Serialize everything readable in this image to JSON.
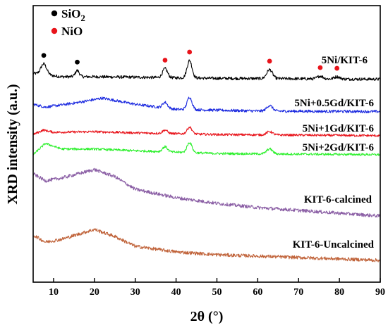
{
  "chart_data": {
    "type": "line",
    "xlabel": "2θ (°)",
    "ylabel": "XRD intensity (a.u.)",
    "xlim": [
      5,
      90
    ],
    "x_ticks": [
      10,
      20,
      30,
      40,
      50,
      60,
      70,
      80,
      90
    ],
    "y_ticks_shown": false,
    "legend": {
      "placement": "top-left",
      "entries": [
        {
          "name": "SiO2",
          "color": "#000000"
        },
        {
          "name": "NiO",
          "color": "#e8141b"
        }
      ]
    },
    "series": [
      {
        "name": "5Ni/KIT-6",
        "color": "#000000",
        "baseline": [
          [
            5,
            0.92
          ],
          [
            7,
            0.84
          ],
          [
            12,
            0.62
          ],
          [
            20,
            0.62
          ],
          [
            30,
            0.58
          ],
          [
            50,
            0.48
          ],
          [
            70,
            0.44
          ],
          [
            90,
            0.4
          ]
        ],
        "peaks": [
          [
            7.6,
            0.95,
            0.7
          ],
          [
            15.8,
            0.55,
            0.5
          ],
          [
            37.3,
            0.8,
            0.6
          ],
          [
            43.3,
            1.55,
            0.6
          ],
          [
            62.9,
            0.8,
            0.7
          ],
          [
            75.3,
            0.25,
            0.7
          ],
          [
            79.4,
            0.2,
            0.7
          ]
        ],
        "noise": 0.13
      },
      {
        "name": "5Ni+0.5Gd/KIT-6",
        "color": "#1f2de0",
        "baseline": [
          [
            5,
            0.8
          ],
          [
            8,
            0.55
          ],
          [
            15,
            0.9
          ],
          [
            22,
            1.35
          ],
          [
            30,
            0.8
          ],
          [
            40,
            0.35
          ],
          [
            60,
            0.2
          ],
          [
            90,
            0.15
          ]
        ],
        "peaks": [
          [
            37.3,
            0.5,
            0.6
          ],
          [
            43.3,
            1.1,
            0.6
          ],
          [
            62.9,
            0.5,
            0.7
          ]
        ],
        "noise": 0.12
      },
      {
        "name": "5Ni+1Gd/KIT-6",
        "color": "#e8141b",
        "baseline": [
          [
            5,
            0.3
          ],
          [
            7.5,
            0.7
          ],
          [
            10,
            0.5
          ],
          [
            20,
            0.55
          ],
          [
            30,
            0.45
          ],
          [
            50,
            0.3
          ],
          [
            90,
            0.2
          ]
        ],
        "peaks": [
          [
            37.3,
            0.3,
            0.6
          ],
          [
            43.3,
            0.6,
            0.6
          ],
          [
            62.9,
            0.3,
            0.7
          ]
        ],
        "noise": 0.1
      },
      {
        "name": "5Ni+2Gd/KIT-6",
        "color": "#2ef02e",
        "baseline": [
          [
            5,
            0.2
          ],
          [
            8,
            1.2
          ],
          [
            12,
            0.7
          ],
          [
            20,
            0.7
          ],
          [
            30,
            0.55
          ],
          [
            50,
            0.3
          ],
          [
            90,
            0.2
          ]
        ],
        "peaks": [
          [
            37.3,
            0.45,
            0.6
          ],
          [
            43.3,
            0.9,
            0.6
          ],
          [
            62.9,
            0.45,
            0.7
          ]
        ],
        "noise": 0.1
      },
      {
        "name": "KIT-6-calcined",
        "color": "#8b5fa5",
        "baseline": [
          [
            5,
            3.2
          ],
          [
            8,
            2.7
          ],
          [
            12,
            2.9
          ],
          [
            20,
            3.5
          ],
          [
            25,
            3.0
          ],
          [
            30,
            2.1
          ],
          [
            40,
            1.5
          ],
          [
            50,
            1.1
          ],
          [
            60,
            0.8
          ],
          [
            70,
            0.6
          ],
          [
            80,
            0.4
          ],
          [
            90,
            0.2
          ]
        ],
        "peaks": [],
        "noise": 0.12
      },
      {
        "name": "KIT-6-Uncalcined",
        "color": "#c0633a",
        "baseline": [
          [
            5,
            2.0
          ],
          [
            8,
            1.5
          ],
          [
            12,
            1.7
          ],
          [
            20,
            2.4
          ],
          [
            25,
            1.9
          ],
          [
            30,
            1.2
          ],
          [
            40,
            0.8
          ],
          [
            50,
            0.6
          ],
          [
            70,
            0.4
          ],
          [
            90,
            0.2
          ]
        ],
        "peaks": [],
        "noise": 0.12
      }
    ],
    "peak_markers": [
      {
        "phase": "SiO2",
        "x": 7.6,
        "series": "5Ni/KIT-6"
      },
      {
        "phase": "SiO2",
        "x": 15.8,
        "series": "5Ni/KIT-6"
      },
      {
        "phase": "NiO",
        "x": 37.3,
        "series": "5Ni/KIT-6"
      },
      {
        "phase": "NiO",
        "x": 43.3,
        "series": "5Ni/KIT-6"
      },
      {
        "phase": "NiO",
        "x": 62.9,
        "series": "5Ni/KIT-6"
      },
      {
        "phase": "NiO",
        "x": 75.3,
        "series": "5Ni/KIT-6"
      },
      {
        "phase": "NiO",
        "x": 79.4,
        "series": "5Ni/KIT-6"
      }
    ]
  }
}
